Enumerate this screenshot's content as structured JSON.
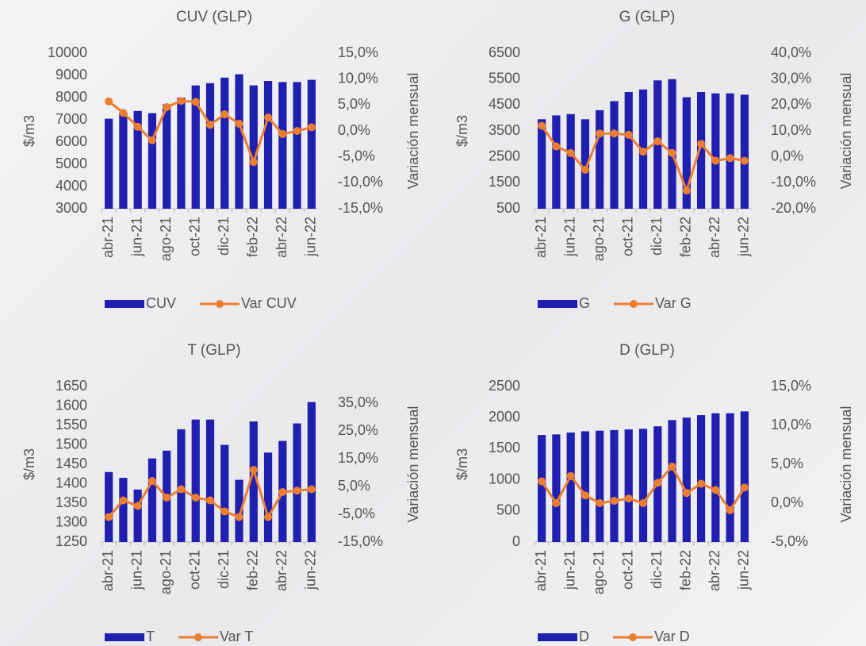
{
  "chart_data": [
    {
      "type": "combo",
      "title": "CUV (GLP)",
      "y_label": "$/m3",
      "y2_label": "Variación mensual",
      "categories": [
        "abr-21",
        null,
        "jun-21",
        null,
        "ago-21",
        null,
        "oct-21",
        null,
        "dic-21",
        null,
        "feb-22",
        null,
        "abr-22",
        null,
        "jun-22"
      ],
      "series": [
        {
          "name": "CUV",
          "type": "bar",
          "color": "#1f1fb0",
          "values": [
            7050,
            7350,
            7400,
            7300,
            7700,
            8000,
            8550,
            8650,
            8900,
            9050,
            8550,
            8750,
            8700,
            8700,
            8800
          ]
        },
        {
          "name": "Var CUV",
          "type": "line",
          "axis": "y2",
          "color": "#ed7d31",
          "values": [
            5.7,
            3.5,
            0.8,
            -1.8,
            4.6,
            5.8,
            5.6,
            1.2,
            3.2,
            1.4,
            -6.0,
            2.6,
            -0.6,
            0.0,
            0.7
          ]
        }
      ],
      "ylim": [
        3000,
        10000
      ],
      "yticks": [
        3000,
        4000,
        5000,
        6000,
        7000,
        8000,
        9000,
        10000
      ],
      "y2lim": [
        -15,
        15
      ],
      "y2ticks": [
        {
          "value": -15,
          "label": "-15,0%"
        },
        {
          "value": -10,
          "label": "-10,0%"
        },
        {
          "value": -5,
          "label": "-5,0%"
        },
        {
          "value": 0,
          "label": "0,0%"
        },
        {
          "value": 5,
          "label": "5,0%"
        },
        {
          "value": 10,
          "label": "10,0%"
        },
        {
          "value": 15,
          "label": "15,0%"
        }
      ]
    },
    {
      "type": "combo",
      "title": "G (GLP)",
      "y_label": "$/m3",
      "y2_label": "Variación mensual",
      "categories": [
        "abr-21",
        null,
        "jun-21",
        null,
        "ago-21",
        null,
        "oct-21",
        null,
        "dic-21",
        null,
        "feb-22",
        null,
        "abr-22",
        null,
        "jun-22"
      ],
      "series": [
        {
          "name": "G",
          "type": "bar",
          "color": "#1f1fb0",
          "values": [
            3950,
            4100,
            4150,
            3950,
            4300,
            4650,
            5000,
            5100,
            5450,
            5500,
            4800,
            5000,
            4950,
            4950,
            4900
          ]
        },
        {
          "name": "Var G",
          "type": "line",
          "axis": "y2",
          "color": "#ed7d31",
          "values": [
            12,
            4,
            1.5,
            -5,
            9,
            9,
            8.5,
            2,
            6,
            1.5,
            -13,
            5,
            -1.5,
            -0.5,
            -1.5
          ]
        }
      ],
      "ylim": [
        500,
        6500
      ],
      "yticks": [
        500,
        1500,
        2500,
        3500,
        4500,
        5500,
        6500
      ],
      "y2lim": [
        -20,
        40
      ],
      "y2ticks": [
        {
          "value": -20,
          "label": "-20,0%"
        },
        {
          "value": -10,
          "label": "-10,0%"
        },
        {
          "value": 0,
          "label": "0,0%"
        },
        {
          "value": 10,
          "label": "10,0%"
        },
        {
          "value": 20,
          "label": "20,0%"
        },
        {
          "value": 30,
          "label": "30,0%"
        },
        {
          "value": 40,
          "label": "40,0%"
        }
      ]
    },
    {
      "type": "combo",
      "title": "T (GLP)",
      "y_label": "$/m3",
      "y2_label": "Variación mensual",
      "categories": [
        "abr-21",
        null,
        "jun-21",
        null,
        "ago-21",
        null,
        "oct-21",
        null,
        "dic-21",
        null,
        "feb-22",
        null,
        "abr-22",
        null,
        "jun-22"
      ],
      "series": [
        {
          "name": "T",
          "type": "bar",
          "color": "#1f1fb0",
          "values": [
            1430,
            1415,
            1385,
            1465,
            1485,
            1540,
            1565,
            1565,
            1500,
            1410,
            1560,
            1480,
            1510,
            1555,
            1610
          ]
        },
        {
          "name": "Var T",
          "type": "line",
          "axis": "y2",
          "color": "#ed7d31",
          "values": [
            -6,
            0,
            -2,
            7,
            1,
            4,
            1,
            0,
            -4,
            -6,
            11,
            -6,
            3,
            3.5,
            4
          ]
        }
      ],
      "ylim": [
        1250,
        1650
      ],
      "yticks": [
        1250,
        1300,
        1350,
        1400,
        1450,
        1500,
        1550,
        1600,
        1650
      ],
      "y2lim": [
        -15,
        41
      ],
      "y2ticks": [
        {
          "value": -15,
          "label": "-15,0%"
        },
        {
          "value": -5,
          "label": "-5,0%"
        },
        {
          "value": 5,
          "label": "5,0%"
        },
        {
          "value": 15,
          "label": "15,0%"
        },
        {
          "value": 25,
          "label": "25,0%"
        },
        {
          "value": 35,
          "label": "35,0%"
        }
      ]
    },
    {
      "type": "combo",
      "title": "D (GLP)",
      "y_label": "$/m3",
      "y2_label": "Variación mensual",
      "categories": [
        "abr-21",
        null,
        "jun-21",
        null,
        "ago-21",
        null,
        "oct-21",
        null,
        "dic-21",
        null,
        "feb-22",
        null,
        "abr-22",
        null,
        "jun-22"
      ],
      "series": [
        {
          "name": "D",
          "type": "bar",
          "color": "#1f1fb0",
          "values": [
            1720,
            1730,
            1760,
            1780,
            1790,
            1800,
            1810,
            1820,
            1860,
            1960,
            2000,
            2040,
            2070,
            2070,
            2100
          ]
        },
        {
          "name": "Var D",
          "type": "line",
          "axis": "y2",
          "color": "#ed7d31",
          "values": [
            2.8,
            0,
            3.5,
            1,
            0,
            0.3,
            0.6,
            0,
            2.6,
            4.7,
            1.3,
            2.5,
            1.7,
            -0.9,
            2
          ]
        }
      ],
      "ylim": [
        0,
        2500
      ],
      "yticks": [
        0,
        500,
        1000,
        1500,
        2000,
        2500
      ],
      "y2lim": [
        -5,
        15
      ],
      "y2ticks": [
        {
          "value": -5,
          "label": "-5,0%"
        },
        {
          "value": 0,
          "label": "0,0%"
        },
        {
          "value": 5,
          "label": "5,0%"
        },
        {
          "value": 10,
          "label": "10,0%"
        },
        {
          "value": 15,
          "label": "15,0%"
        }
      ]
    }
  ]
}
